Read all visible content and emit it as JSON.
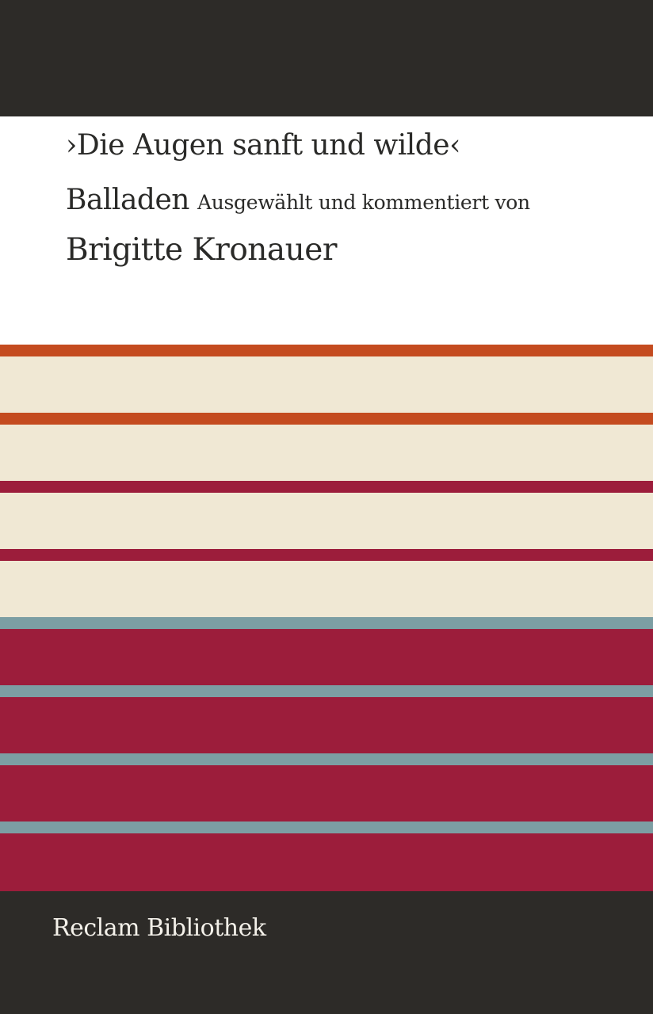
{
  "cover": {
    "title": "›Die Augen sanft und wilde‹",
    "genre": "Balladen",
    "editor_note": "Ausgewählt und kommentiert von",
    "editor": "Brigitte Kronauer",
    "series": "Reclam Bibliothek"
  },
  "colors": {
    "dark": "#2d2b28",
    "white": "#ffffff",
    "cream": "#f0e8d4",
    "orange": "#c44b1f",
    "crimson": "#9c1d3b",
    "teal": "#7c9ea3"
  },
  "stripes": [
    {
      "color": "orange"
    },
    {
      "color": "cream"
    },
    {
      "color": "orange"
    },
    {
      "color": "cream"
    },
    {
      "color": "crimson"
    },
    {
      "color": "cream"
    },
    {
      "color": "crimson"
    },
    {
      "color": "cream"
    },
    {
      "color": "teal"
    },
    {
      "color": "crimson"
    },
    {
      "color": "teal"
    },
    {
      "color": "crimson"
    },
    {
      "color": "teal"
    },
    {
      "color": "crimson"
    },
    {
      "color": "teal"
    },
    {
      "color": "crimson"
    }
  ]
}
